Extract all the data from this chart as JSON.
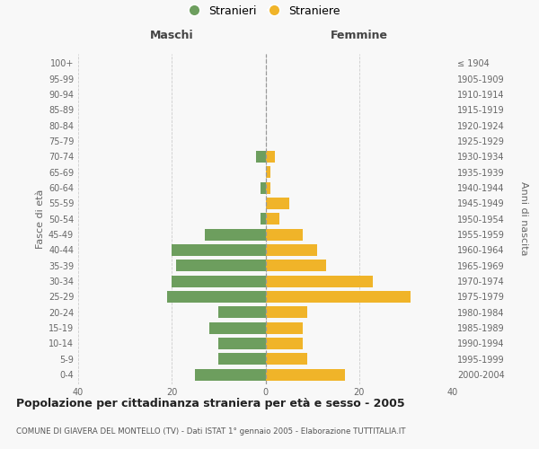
{
  "age_groups_bottom_to_top": [
    "0-4",
    "5-9",
    "10-14",
    "15-19",
    "20-24",
    "25-29",
    "30-34",
    "35-39",
    "40-44",
    "45-49",
    "50-54",
    "55-59",
    "60-64",
    "65-69",
    "70-74",
    "75-79",
    "80-84",
    "85-89",
    "90-94",
    "95-99",
    "100+"
  ],
  "birth_years_bottom_to_top": [
    "2000-2004",
    "1995-1999",
    "1990-1994",
    "1985-1989",
    "1980-1984",
    "1975-1979",
    "1970-1974",
    "1965-1969",
    "1960-1964",
    "1955-1959",
    "1950-1954",
    "1945-1949",
    "1940-1944",
    "1935-1939",
    "1930-1934",
    "1925-1929",
    "1920-1924",
    "1915-1919",
    "1910-1914",
    "1905-1909",
    "≤ 1904"
  ],
  "maschi_bottom_to_top": [
    15,
    10,
    10,
    12,
    10,
    21,
    20,
    19,
    20,
    13,
    1,
    0,
    1,
    0,
    2,
    0,
    0,
    0,
    0,
    0,
    0
  ],
  "femmine_bottom_to_top": [
    17,
    9,
    8,
    8,
    9,
    31,
    23,
    13,
    11,
    8,
    3,
    5,
    1,
    1,
    2,
    0,
    0,
    0,
    0,
    0,
    0
  ],
  "color_maschi": "#6d9e5e",
  "color_femmine": "#f0b429",
  "bg_color": "#f8f8f8",
  "title_main": "Popolazione per cittadinanza straniera per età e sesso - 2005",
  "title_sub": "COMUNE DI GIAVERA DEL MONTELLO (TV) - Dati ISTAT 1° gennaio 2005 - Elaborazione TUTTITALIA.IT",
  "label_maschi": "Maschi",
  "label_femmine": "Femmine",
  "ylabel_left": "Fasce di età",
  "ylabel_right": "Anni di nascita",
  "legend_maschi": "Stranieri",
  "legend_femmine": "Straniere",
  "xlim": 40
}
